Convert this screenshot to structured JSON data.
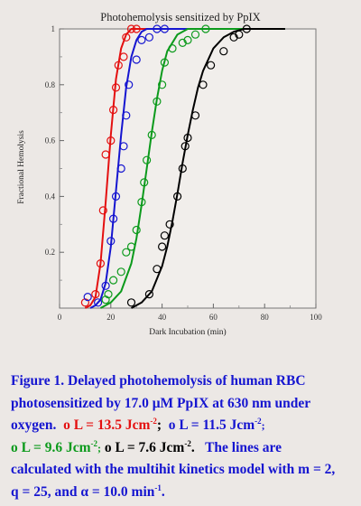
{
  "chart_data": {
    "type": "scatter",
    "title": "Photohemolysis sensitized by PpIX",
    "xlabel": "Dark Incubation (min)",
    "ylabel": "Fractional Hemolysis",
    "xlim": [
      0,
      100
    ],
    "ylim": [
      0,
      1
    ],
    "x_ticks": [
      "0",
      "20",
      "40",
      "60",
      "80",
      "100"
    ],
    "y_ticks": [
      "0.2",
      "0.4",
      "0.6",
      "0.8",
      "1"
    ],
    "grid": false,
    "series": [
      {
        "label": "L = 13.5 Jcm-2",
        "color": "#e41010",
        "points": [
          [
            10,
            0.02
          ],
          [
            14,
            0.05
          ],
          [
            16,
            0.16
          ],
          [
            17,
            0.35
          ],
          [
            18,
            0.55
          ],
          [
            20,
            0.6
          ],
          [
            21,
            0.71
          ],
          [
            22,
            0.79
          ],
          [
            23,
            0.87
          ],
          [
            25,
            0.9
          ],
          [
            26,
            0.97
          ],
          [
            28,
            1.0
          ],
          [
            30,
            1.0
          ]
        ],
        "curve": [
          [
            10,
            0.0
          ],
          [
            12,
            0.01
          ],
          [
            14,
            0.04
          ],
          [
            16,
            0.16
          ],
          [
            18,
            0.38
          ],
          [
            20,
            0.62
          ],
          [
            22,
            0.82
          ],
          [
            24,
            0.93
          ],
          [
            26,
            0.98
          ],
          [
            28,
            1.0
          ],
          [
            30,
            1.0
          ],
          [
            88,
            1.0
          ]
        ]
      },
      {
        "label": "L = 11.5 Jcm-2",
        "color": "#1515d0",
        "points": [
          [
            11,
            0.04
          ],
          [
            15,
            0.02
          ],
          [
            18,
            0.08
          ],
          [
            20,
            0.24
          ],
          [
            21,
            0.32
          ],
          [
            22,
            0.4
          ],
          [
            24,
            0.5
          ],
          [
            25,
            0.58
          ],
          [
            26,
            0.69
          ],
          [
            27,
            0.8
          ],
          [
            30,
            0.89
          ],
          [
            32,
            0.96
          ],
          [
            35,
            0.97
          ],
          [
            38,
            1.0
          ],
          [
            41,
            1.0
          ]
        ],
        "curve": [
          [
            12,
            0.0
          ],
          [
            14,
            0.01
          ],
          [
            16,
            0.03
          ],
          [
            18,
            0.09
          ],
          [
            20,
            0.22
          ],
          [
            22,
            0.42
          ],
          [
            24,
            0.62
          ],
          [
            26,
            0.79
          ],
          [
            28,
            0.9
          ],
          [
            30,
            0.96
          ],
          [
            32,
            0.99
          ],
          [
            34,
            1.0
          ],
          [
            88,
            1.0
          ]
        ]
      },
      {
        "label": "L = 9.6 Jcm-2",
        "color": "#0c9a1c",
        "points": [
          [
            18,
            0.03
          ],
          [
            19,
            0.05
          ],
          [
            21,
            0.1
          ],
          [
            24,
            0.13
          ],
          [
            26,
            0.2
          ],
          [
            28,
            0.22
          ],
          [
            30,
            0.28
          ],
          [
            32,
            0.38
          ],
          [
            33,
            0.45
          ],
          [
            34,
            0.53
          ],
          [
            36,
            0.62
          ],
          [
            38,
            0.74
          ],
          [
            40,
            0.8
          ],
          [
            41,
            0.88
          ],
          [
            44,
            0.93
          ],
          [
            48,
            0.95
          ],
          [
            50,
            0.96
          ],
          [
            53,
            0.98
          ],
          [
            57,
            1.0
          ]
        ],
        "curve": [
          [
            16,
            0.0
          ],
          [
            20,
            0.02
          ],
          [
            24,
            0.06
          ],
          [
            28,
            0.16
          ],
          [
            30,
            0.25
          ],
          [
            32,
            0.37
          ],
          [
            34,
            0.5
          ],
          [
            36,
            0.63
          ],
          [
            38,
            0.75
          ],
          [
            40,
            0.85
          ],
          [
            42,
            0.92
          ],
          [
            46,
            0.98
          ],
          [
            50,
            1.0
          ],
          [
            88,
            1.0
          ]
        ]
      },
      {
        "label": "L = 7.6 Jcm-2",
        "color": "#000000",
        "points": [
          [
            28,
            0.02
          ],
          [
            35,
            0.05
          ],
          [
            38,
            0.14
          ],
          [
            40,
            0.22
          ],
          [
            41,
            0.26
          ],
          [
            43,
            0.3
          ],
          [
            46,
            0.4
          ],
          [
            48,
            0.5
          ],
          [
            49,
            0.58
          ],
          [
            50,
            0.61
          ],
          [
            53,
            0.69
          ],
          [
            56,
            0.8
          ],
          [
            59,
            0.87
          ],
          [
            64,
            0.92
          ],
          [
            68,
            0.97
          ],
          [
            70,
            0.98
          ],
          [
            73,
            1.0
          ]
        ],
        "curve": [
          [
            28,
            0.0
          ],
          [
            32,
            0.02
          ],
          [
            36,
            0.06
          ],
          [
            40,
            0.15
          ],
          [
            42,
            0.22
          ],
          [
            44,
            0.31
          ],
          [
            46,
            0.41
          ],
          [
            48,
            0.52
          ],
          [
            50,
            0.62
          ],
          [
            52,
            0.71
          ],
          [
            54,
            0.79
          ],
          [
            56,
            0.85
          ],
          [
            60,
            0.93
          ],
          [
            64,
            0.97
          ],
          [
            68,
            0.99
          ],
          [
            72,
            1.0
          ],
          [
            88,
            1.0
          ]
        ]
      }
    ]
  },
  "caption": {
    "line1": "Figure 1.    Delayed photohemolysis of human RBC",
    "line2": "photosensitized  by 17.0 μM PpIX at 630 nm under",
    "line3_start": "oxygen.",
    "red": {
      "marker": "o",
      "text": "L = 13.5 Jcm",
      "sup": "-2",
      "sep": ";"
    },
    "blue": {
      "marker": "o",
      "text": "L = 11.5 Jcm",
      "sup": "-2",
      "sep": ";"
    },
    "green": {
      "marker": "o",
      "text": "L =  9.6 Jcm",
      "sup": "-2",
      "sep": ";"
    },
    "black": {
      "marker": "o",
      "text": "L = 7.6 Jcm",
      "sup": "-2",
      "sep": "."
    },
    "line4_end": "The lines are",
    "line5": "calculated with the multihit kinetics model with m = 2,",
    "line6_start": "q = 25, and α = 10.0 min",
    "line6_sup": "-1",
    "line6_end": "."
  }
}
